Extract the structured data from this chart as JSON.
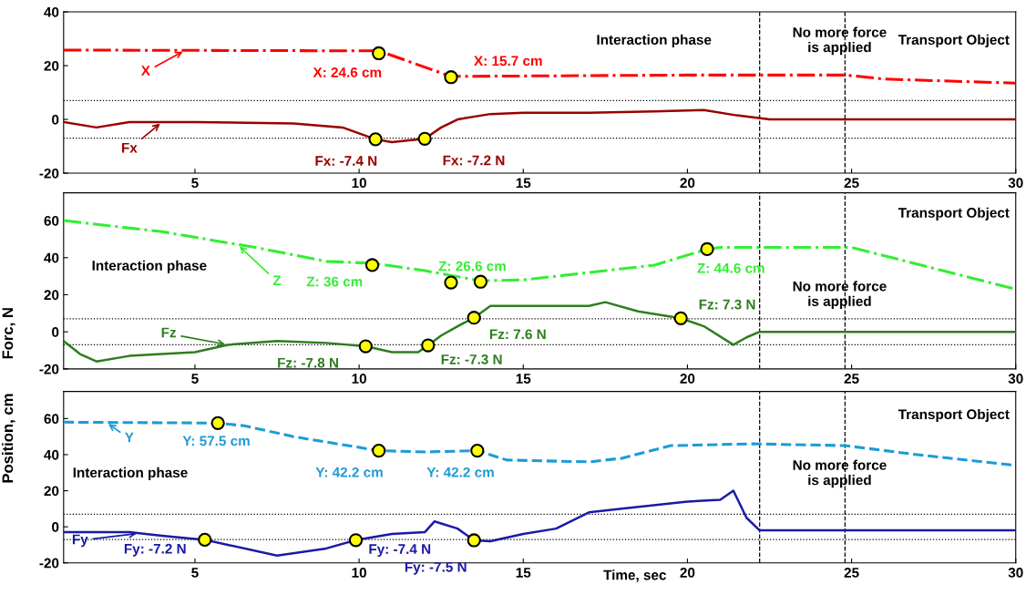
{
  "chart_data": [
    {
      "type": "line",
      "xlim": [
        1,
        30
      ],
      "xticks": [
        5,
        10,
        15,
        20,
        25,
        30
      ],
      "ylim": [
        -20,
        40
      ],
      "yticks": [
        -20,
        0,
        20,
        40
      ],
      "series": [
        {
          "name": "X",
          "color": "#ff0000",
          "line_style": "dashdot",
          "x": [
            1,
            10.6,
            12.8,
            20,
            24.8,
            26,
            30
          ],
          "values": [
            25.8,
            25.5,
            16,
            16.5,
            16.5,
            15,
            13.5
          ]
        },
        {
          "type": "scatter",
          "color": "#ffff00",
          "x": [
            10.6,
            12.8
          ],
          "values": [
            24.6,
            15.7
          ],
          "value_labels": [
            "X: 24.6 cm",
            "X: 15.7 cm"
          ]
        },
        {
          "name": "Fx",
          "color": "#990000",
          "line_style": "solid",
          "x": [
            1,
            2,
            3,
            5,
            8,
            9.5,
            10.5,
            11,
            12,
            12.5,
            13,
            14,
            15,
            17,
            19,
            20.5,
            21.5,
            22.5,
            30
          ],
          "values": [
            -1,
            -3,
            -1,
            -1,
            -1.5,
            -3,
            -7.4,
            -8.5,
            -7.2,
            -3,
            0,
            2,
            2.5,
            2.5,
            3,
            3.5,
            1.5,
            0,
            0
          ]
        },
        {
          "type": "scatter",
          "color": "#ffff00",
          "x": [
            10.5,
            12
          ],
          "values": [
            -7.4,
            -7.2
          ],
          "value_labels": [
            "Fx: -7.4 N",
            "Fx: -7.2 N"
          ]
        }
      ],
      "ref_lines": [
        {
          "axis": "y",
          "value": 7,
          "line_style": "dotted",
          "color": "#000000"
        },
        {
          "axis": "y",
          "value": -7,
          "line_style": "dotted",
          "color": "#000000"
        },
        {
          "axis": "x",
          "value": 22.2,
          "line_style": "dashed",
          "color": "#000000"
        },
        {
          "axis": "x",
          "value": 24.8,
          "line_style": "dashed",
          "color": "#000000"
        }
      ],
      "annotations": [
        "Interaction phase",
        "No more force\nis applied",
        "Transport Object"
      ]
    },
    {
      "type": "line",
      "xlim": [
        1,
        30
      ],
      "xticks": [
        5,
        10,
        15,
        20,
        25,
        30
      ],
      "ylim": [
        -20,
        75
      ],
      "yticks": [
        -20,
        0,
        20,
        40,
        60
      ],
      "ylabel": "Position, cm        Forc, N",
      "series": [
        {
          "name": "Z",
          "color": "#33ee33",
          "line_style": "dashdot",
          "x": [
            1,
            4,
            7,
            9,
            10.4,
            12,
            13.7,
            15,
            17,
            19,
            20.6,
            21,
            25,
            30
          ],
          "values": [
            60,
            54,
            45,
            38,
            37,
            33,
            27.5,
            28,
            32,
            36,
            44.6,
            45.5,
            45.5,
            23
          ]
        },
        {
          "type": "scatter",
          "color": "#ffff00",
          "x": [
            10.4,
            12.8,
            13.7,
            20.6
          ],
          "values": [
            36,
            26.6,
            27,
            44.6
          ],
          "value_labels": [
            "Z: 36 cm",
            "Z: 26.6 cm",
            null,
            "Z: 44.6 cm"
          ]
        },
        {
          "name": "Fz",
          "color": "#2e7d1e",
          "line_style": "solid",
          "x": [
            1,
            1.5,
            2,
            3,
            5,
            6,
            7.5,
            9,
            10.2,
            11,
            11.8,
            12.1,
            12.5,
            13,
            13.5,
            14,
            15,
            17,
            17.5,
            18.5,
            19.8,
            20.5,
            21.4,
            21.8,
            22.2,
            30
          ],
          "values": [
            -5,
            -12,
            -16,
            -13,
            -11,
            -7,
            -5,
            -6,
            -7.8,
            -11,
            -11,
            -7.3,
            -2,
            3,
            7.6,
            14,
            14,
            14,
            16,
            11,
            7.3,
            3,
            -7,
            -3,
            0,
            0
          ]
        },
        {
          "type": "scatter",
          "color": "#ffff00",
          "x": [
            10.2,
            12.1,
            13.5,
            19.8
          ],
          "values": [
            -7.8,
            -7.3,
            7.6,
            7.3
          ],
          "value_labels": [
            "Fz: -7.8 N",
            "Fz: -7.3 N",
            "Fz: 7.6 N",
            "Fz: 7.3 N"
          ]
        }
      ],
      "ref_lines": [
        {
          "axis": "y",
          "value": 7,
          "line_style": "dotted",
          "color": "#000000"
        },
        {
          "axis": "y",
          "value": -7,
          "line_style": "dotted",
          "color": "#000000"
        },
        {
          "axis": "x",
          "value": 22.2,
          "line_style": "dashed",
          "color": "#000000"
        },
        {
          "axis": "x",
          "value": 24.8,
          "line_style": "dashed",
          "color": "#000000"
        }
      ],
      "annotations": [
        "Transport Object",
        "Interaction phase",
        "No more force\nis applied"
      ]
    },
    {
      "type": "line",
      "xlim": [
        1,
        30
      ],
      "xticks": [
        5,
        10,
        15,
        20,
        25,
        30
      ],
      "ylim": [
        -20,
        75
      ],
      "yticks": [
        -20,
        0,
        20,
        40,
        60
      ],
      "xlabel": "Time, sec",
      "series": [
        {
          "name": "Y",
          "color": "#1e9bd7",
          "line_style": "dashed",
          "x": [
            1,
            5.7,
            6.5,
            8,
            10.6,
            12,
            13.6,
            14.5,
            17,
            18,
            19.5,
            22,
            24.8,
            27,
            30
          ],
          "values": [
            58,
            57.5,
            56,
            50,
            42.2,
            41.5,
            42.2,
            37,
            36,
            38,
            45,
            46,
            45,
            40,
            34
          ]
        },
        {
          "type": "scatter",
          "color": "#ffff00",
          "x": [
            5.7,
            10.6,
            13.6
          ],
          "values": [
            57.5,
            42.2,
            42.2
          ],
          "value_labels": [
            "Y: 57.5 cm",
            "Y: 42.2 cm",
            "Y: 42.2 cm"
          ]
        },
        {
          "name": "Fy",
          "color": "#1a1aa6",
          "line_style": "solid",
          "x": [
            1,
            3,
            4,
            5.3,
            6,
            7.5,
            9,
            9.9,
            11,
            12,
            12.3,
            13,
            13.5,
            14,
            15,
            16,
            17,
            18,
            20,
            21,
            21.4,
            21.8,
            22.2,
            30
          ],
          "values": [
            -3,
            -3,
            -5,
            -7.2,
            -10,
            -16,
            -12,
            -7.4,
            -4,
            -3,
            3,
            -1,
            -7.5,
            -8,
            -4,
            -1,
            8,
            10,
            14,
            15,
            20,
            5,
            -2,
            -2
          ]
        },
        {
          "type": "scatter",
          "color": "#ffff00",
          "x": [
            5.3,
            9.9,
            13.5
          ],
          "values": [
            -7.2,
            -7.4,
            -7.5
          ],
          "value_labels": [
            "Fy: -7.2 N",
            "Fy: -7.4 N",
            "Fy: -7.5 N"
          ]
        }
      ],
      "ref_lines": [
        {
          "axis": "y",
          "value": 7,
          "line_style": "dotted",
          "color": "#000000"
        },
        {
          "axis": "y",
          "value": -7,
          "line_style": "dotted",
          "color": "#000000"
        },
        {
          "axis": "x",
          "value": 22.2,
          "line_style": "dashed",
          "color": "#000000"
        },
        {
          "axis": "x",
          "value": 24.8,
          "line_style": "dashed",
          "color": "#000000"
        }
      ],
      "annotations": [
        "Transport Object",
        "Interaction phase",
        "No more force\nis applied"
      ]
    }
  ]
}
